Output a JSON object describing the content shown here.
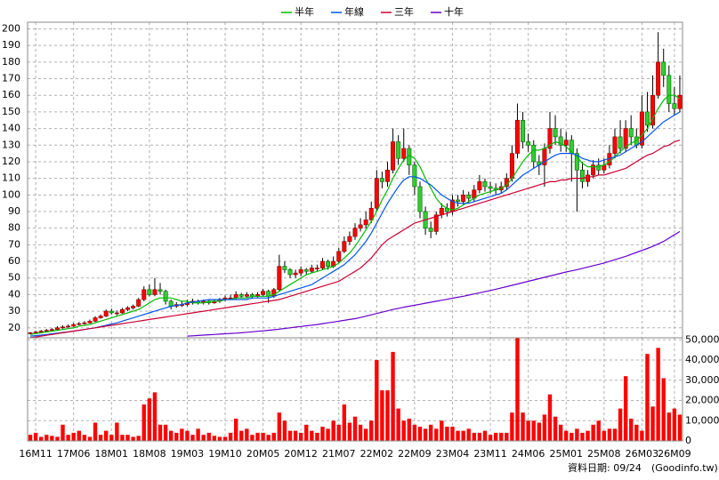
{
  "chart_data": [
    {
      "type": "candlestick",
      "categories": [
        null,
        "16M11",
        null,
        null,
        null,
        null,
        null,
        null,
        "17M06",
        null,
        null,
        null,
        null,
        null,
        null,
        "18M01",
        null,
        null,
        null,
        null,
        null,
        null,
        "18M08",
        null,
        null,
        null,
        null,
        null,
        null,
        "19M03",
        null,
        null,
        null,
        null,
        null,
        null,
        "19M10",
        null,
        null,
        null,
        null,
        null,
        null,
        "20M05",
        null,
        null,
        null,
        null,
        null,
        null,
        "20M12",
        null,
        null,
        null,
        null,
        null,
        null,
        "21M07",
        null,
        null,
        null,
        null,
        null,
        null,
        "22M02",
        null,
        null,
        null,
        null,
        null,
        null,
        "22M09",
        null,
        null,
        null,
        null,
        null,
        null,
        "23M04",
        null,
        null,
        null,
        null,
        null,
        null,
        "23M11",
        null,
        null,
        null,
        null,
        null,
        null,
        "24M06",
        null,
        null,
        null,
        null,
        null,
        null,
        "25M01",
        null,
        null,
        null,
        null,
        null,
        null,
        "25M08",
        null,
        null,
        null,
        null,
        null,
        null,
        "26M03",
        null,
        null,
        null,
        null,
        null,
        "26M09",
        null
      ],
      "open": [
        16.5,
        17,
        17.5,
        18,
        18.5,
        19,
        20,
        20.5,
        21,
        22,
        22.5,
        23,
        24,
        26,
        27,
        30,
        29,
        29,
        31,
        32,
        33,
        37,
        43,
        40,
        43,
        42,
        36,
        33,
        34,
        34,
        35,
        36,
        35,
        36,
        35,
        36,
        37,
        38,
        38,
        40,
        39,
        40,
        39,
        40,
        42,
        39,
        43,
        57,
        55,
        52,
        53,
        55,
        54,
        56,
        56,
        60,
        57,
        60,
        66,
        72,
        75,
        80,
        82,
        85,
        92,
        110,
        108,
        115,
        132,
        122,
        128,
        118,
        105,
        90,
        80,
        78,
        88,
        92,
        90,
        97,
        96,
        100,
        98,
        103,
        108,
        105,
        104,
        103,
        105,
        110,
        125,
        145,
        132,
        130,
        120,
        118,
        128,
        140,
        135,
        130,
        133,
        125,
        115,
        108,
        112,
        118,
        115,
        118,
        125,
        135,
        128,
        140,
        135,
        130,
        150,
        142,
        160,
        180,
        172,
        155,
        152
      ],
      "high": [
        17.5,
        18.2,
        18.7,
        19.3,
        19.8,
        21,
        21.5,
        22,
        23,
        23.5,
        24,
        25,
        27,
        28,
        31,
        31.5,
        30.5,
        32,
        33,
        34,
        38,
        45,
        46,
        50,
        47,
        43,
        37,
        35.5,
        36,
        37,
        37.5,
        37,
        37,
        37,
        37,
        38,
        39.5,
        40,
        42,
        41,
        41.5,
        41,
        41.5,
        43.5,
        43,
        44,
        64,
        60,
        56,
        55,
        57,
        56,
        58,
        58,
        62,
        61,
        63,
        68,
        75,
        78,
        83,
        86,
        90,
        96,
        115,
        114,
        120,
        140,
        136,
        140,
        130,
        120,
        108,
        93,
        84,
        90,
        95,
        95,
        100,
        100,
        103,
        102,
        106,
        112,
        110,
        108,
        107,
        108,
        113,
        130,
        155,
        150,
        137,
        133,
        124,
        131,
        150,
        148,
        140,
        138,
        136,
        128,
        120,
        115,
        121,
        122,
        122,
        130,
        140,
        145,
        145,
        148,
        140,
        160,
        162,
        172,
        198,
        188,
        178,
        165,
        172
      ],
      "low": [
        16,
        16.6,
        17,
        17.5,
        18,
        18.6,
        19.4,
        20,
        20.5,
        21.5,
        22,
        22.5,
        23.5,
        25.5,
        26.5,
        28,
        27.5,
        28.5,
        30,
        31,
        32.5,
        36,
        39,
        39,
        40,
        34,
        31,
        32,
        32.5,
        33,
        34,
        34,
        34,
        34,
        34.5,
        35,
        36,
        37,
        37,
        38,
        38,
        37.5,
        38,
        39,
        35,
        38,
        42,
        53,
        50,
        50,
        51,
        52,
        53,
        54,
        55,
        55,
        56,
        59,
        65,
        70,
        73,
        78,
        80,
        83,
        90,
        104,
        105,
        113,
        118,
        120,
        112,
        100,
        86,
        76,
        74,
        76,
        86,
        87,
        88,
        93,
        94,
        95,
        96,
        101,
        102,
        101,
        100,
        101,
        103,
        108,
        122,
        128,
        126,
        116,
        112,
        105,
        125,
        130,
        126,
        126,
        108,
        90,
        104,
        105,
        110,
        112,
        113,
        116,
        122,
        125,
        126,
        130,
        128,
        128,
        138,
        140,
        158,
        165,
        150,
        148,
        150
      ],
      "close": [
        17,
        17.5,
        18,
        18.5,
        19,
        20,
        20.5,
        21,
        22,
        22.5,
        23,
        24,
        26,
        27,
        30,
        29,
        29,
        31,
        32,
        33,
        37,
        43,
        40,
        43,
        42,
        36,
        33,
        34,
        34,
        35,
        36,
        35,
        36,
        35,
        36,
        37,
        38,
        38,
        40,
        39,
        40,
        39,
        40,
        42,
        39,
        43,
        57,
        55,
        52,
        53,
        55,
        54,
        56,
        56,
        60,
        57,
        60,
        66,
        72,
        75,
        80,
        82,
        85,
        92,
        110,
        108,
        115,
        132,
        122,
        128,
        118,
        105,
        90,
        80,
        78,
        88,
        92,
        90,
        97,
        96,
        100,
        98,
        103,
        108,
        105,
        104,
        103,
        105,
        110,
        125,
        145,
        132,
        130,
        120,
        118,
        128,
        140,
        135,
        130,
        133,
        125,
        115,
        108,
        112,
        118,
        115,
        118,
        125,
        135,
        128,
        140,
        135,
        130,
        150,
        142,
        160,
        180,
        172,
        155,
        152,
        160
      ],
      "up_color": "#ff0000",
      "down_color": "#33cc33",
      "series": [
        {
          "name": "半年",
          "color": "#00bb00",
          "values": [
            16,
            16.5,
            17,
            17.5,
            18,
            18.5,
            19,
            19.5,
            20,
            21,
            21.5,
            22,
            23,
            24,
            25,
            26,
            27,
            28,
            29,
            30,
            31,
            33,
            35,
            37,
            38,
            38,
            38,
            37,
            36,
            36,
            35,
            35,
            35,
            36,
            36,
            36,
            37,
            37,
            38,
            38,
            38,
            39,
            39,
            39,
            39,
            40,
            42,
            44,
            46,
            48,
            50,
            52,
            53,
            54,
            55,
            56,
            57,
            59,
            62,
            65,
            69,
            74,
            79,
            84,
            90,
            97,
            103,
            110,
            116,
            121,
            124,
            122,
            117,
            110,
            104,
            98,
            94,
            92,
            91,
            92,
            94,
            96,
            98,
            100,
            101,
            102,
            103,
            104,
            106,
            110,
            115,
            120,
            124,
            127,
            127,
            128,
            130,
            132,
            131,
            129,
            126,
            123,
            119,
            117,
            117,
            117,
            118,
            120,
            123,
            126,
            129,
            131,
            133,
            136,
            140,
            146,
            152,
            157,
            160,
            160,
            158
          ]
        },
        {
          "name": "年線",
          "color": "#0055ee",
          "values": [
            15,
            15.3,
            15.6,
            16,
            16.4,
            16.8,
            17.2,
            17.6,
            18,
            18.5,
            19,
            19.5,
            20,
            20.8,
            21.5,
            22.3,
            23,
            24,
            25,
            26,
            27,
            28,
            29,
            30,
            31,
            32,
            33,
            33.5,
            34,
            35,
            35.5,
            36,
            36.5,
            37,
            37,
            37,
            37,
            37,
            37,
            37,
            37,
            38,
            38,
            38,
            38,
            39,
            40,
            41,
            42,
            43,
            44,
            45,
            46,
            48,
            50,
            52,
            54,
            56,
            58,
            61,
            64,
            68,
            72,
            77,
            83,
            89,
            95,
            100,
            105,
            109,
            111,
            111,
            110,
            108,
            106,
            103,
            100,
            98,
            96,
            95,
            95,
            95,
            96,
            97,
            98,
            99,
            100,
            101,
            103,
            106,
            109,
            112,
            114,
            116,
            118,
            120,
            122,
            124,
            125,
            125,
            125,
            124,
            122,
            121,
            120,
            120,
            121,
            122,
            123,
            124,
            126,
            128,
            130,
            132,
            135,
            138,
            141,
            144,
            146,
            148,
            150
          ]
        },
        {
          "name": "三年",
          "color": "#cc0033",
          "values": [
            14,
            14.5,
            15,
            15.5,
            16,
            16.5,
            17,
            17.5,
            18,
            18.5,
            19,
            19.5,
            20,
            20.5,
            21,
            21.5,
            22,
            22.5,
            23,
            23.5,
            24,
            24.5,
            25,
            25.5,
            26,
            26.5,
            27,
            27.5,
            28,
            28.5,
            29,
            29.5,
            30,
            30.5,
            31,
            31.5,
            32,
            32.5,
            33,
            33.5,
            34,
            34.5,
            35,
            35.5,
            36,
            36.5,
            37,
            38,
            39,
            40,
            41,
            42,
            43,
            44,
            45,
            46,
            47,
            48,
            50,
            52,
            54,
            56,
            59,
            62,
            66,
            70,
            73,
            75,
            77,
            79,
            81,
            83,
            84,
            85,
            86,
            87,
            88,
            89,
            90,
            91,
            92,
            93,
            94,
            95,
            96,
            97,
            98,
            99,
            100,
            101,
            102,
            103,
            104,
            105,
            106,
            107,
            108,
            108,
            109,
            109,
            110,
            110,
            110,
            111,
            111,
            112,
            112,
            113,
            114,
            115,
            116,
            118,
            120,
            122,
            124,
            125,
            127,
            129,
            130,
            132,
            133
          ]
        },
        {
          "name": "十年",
          "color": "#6600cc",
          "values": [
            null,
            null,
            null,
            null,
            null,
            null,
            null,
            null,
            null,
            null,
            null,
            null,
            null,
            null,
            null,
            null,
            null,
            null,
            null,
            null,
            null,
            null,
            null,
            null,
            null,
            null,
            null,
            null,
            null,
            15,
            15.2,
            15.4,
            15.6,
            15.8,
            16,
            16.2,
            16.4,
            16.6,
            16.8,
            17,
            17.3,
            17.6,
            17.9,
            18.2,
            18.5,
            18.8,
            19.2,
            19.6,
            20,
            20.4,
            20.8,
            21.2,
            21.6,
            22,
            22.5,
            23,
            23.5,
            24,
            24.5,
            25,
            25.5,
            26.2,
            27,
            27.8,
            28.6,
            29.4,
            30.2,
            31,
            31.7,
            32.4,
            33,
            33.6,
            34.2,
            34.8,
            35.4,
            36,
            36.6,
            37.2,
            37.8,
            38.4,
            39,
            39.7,
            40.4,
            41.1,
            41.8,
            42.5,
            43.2,
            44,
            44.8,
            45.6,
            46.4,
            47.2,
            48,
            48.8,
            49.6,
            50.4,
            51.2,
            52,
            52.8,
            53.6,
            54.3,
            55,
            55.8,
            56.6,
            57.4,
            58.2,
            59,
            60,
            61,
            62,
            63,
            64.2,
            65.4,
            66.6,
            67.8,
            69,
            70.5,
            72,
            74,
            76,
            78
          ]
        }
      ],
      "ylim": [
        14,
        204
      ],
      "yticks": [
        20,
        30,
        40,
        50,
        60,
        70,
        80,
        90,
        100,
        110,
        120,
        130,
        140,
        150,
        160,
        170,
        180,
        190,
        200
      ],
      "grid": true,
      "legend": "top"
    },
    {
      "type": "bar",
      "values": [
        3000,
        4000,
        2000,
        3000,
        2500,
        2000,
        8000,
        3000,
        4000,
        5000,
        3000,
        2000,
        9000,
        3000,
        5000,
        3000,
        9000,
        3000,
        3000,
        2000,
        2500,
        18000,
        21000,
        24000,
        8000,
        8000,
        5000,
        4000,
        6000,
        5000,
        3000,
        6000,
        3000,
        4000,
        2500,
        2000,
        2000,
        4000,
        11000,
        5000,
        6000,
        3000,
        4000,
        4000,
        3000,
        4000,
        14000,
        10000,
        5000,
        5000,
        4000,
        8000,
        5000,
        4000,
        7000,
        6000,
        10000,
        8000,
        18000,
        9000,
        12000,
        8000,
        6000,
        10000,
        40000,
        25000,
        25000,
        44000,
        16000,
        10000,
        11000,
        8000,
        7000,
        6000,
        8000,
        6000,
        10000,
        7000,
        7000,
        5000,
        5000,
        6000,
        4000,
        4000,
        5000,
        3000,
        4000,
        4000,
        4000,
        14000,
        51000,
        14000,
        10000,
        10000,
        9000,
        13000,
        23000,
        12000,
        8000,
        5000,
        4000,
        6000,
        4000,
        5000,
        8000,
        10000,
        5000,
        6000,
        6000,
        16000,
        32000,
        11000,
        8000,
        5000,
        43000,
        17000,
        46000,
        31000,
        14000,
        16000,
        13000
      ],
      "color": "#ff0000",
      "ylim": [
        0,
        51000
      ],
      "yticks": [
        0,
        {
          "value": 10000,
          "label": "10,000"
        },
        {
          "value": 20000,
          "label": "20,000"
        },
        {
          "value": 30000,
          "label": "30,000"
        },
        {
          "value": 40000,
          "label": "40,000"
        },
        {
          "value": 50000,
          "label": "50,000"
        }
      ],
      "grid": true
    }
  ],
  "footer": {
    "date": "資料日期: 09/24",
    "source": "(Goodinfo.tw)"
  }
}
